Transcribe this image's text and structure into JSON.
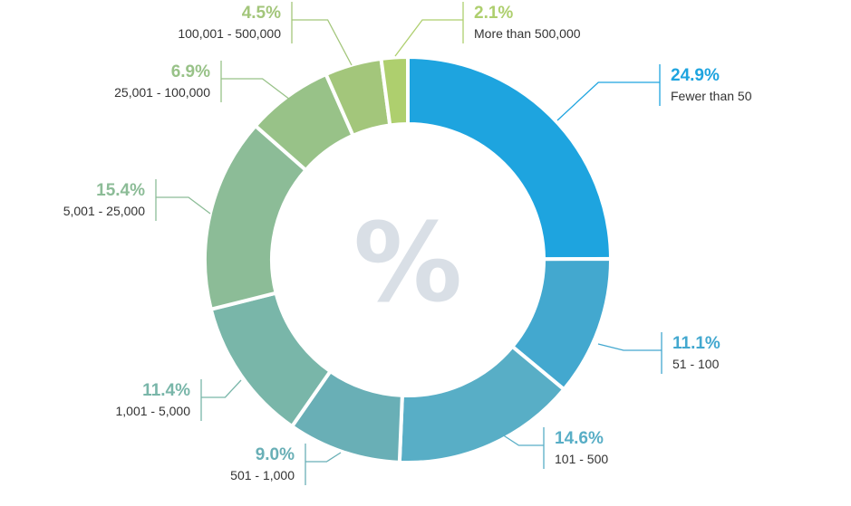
{
  "chart_data": {
    "type": "pie",
    "center_symbol": "%",
    "slices": [
      {
        "label": "Fewer than 50",
        "value": 24.9,
        "value_label": "24.9%",
        "color": "#1ea4df"
      },
      {
        "label": "51 - 100",
        "value": 11.1,
        "value_label": "11.1%",
        "color": "#43a8cf"
      },
      {
        "label": "101 - 500",
        "value": 14.6,
        "value_label": "14.6%",
        "color": "#58aec6"
      },
      {
        "label": "501 - 1,000",
        "value": 9.0,
        "value_label": "9.0%",
        "color": "#69afb6"
      },
      {
        "label": "1,001 - 5,000",
        "value": 11.4,
        "value_label": "11.4%",
        "color": "#79b6a9"
      },
      {
        "label": "5,001 - 25,000",
        "value": 15.4,
        "value_label": "15.4%",
        "color": "#8cbc97"
      },
      {
        "label": "25,001 - 100,000",
        "value": 6.9,
        "value_label": "6.9%",
        "color": "#98c288"
      },
      {
        "label": "100,001 - 500,000",
        "value": 4.5,
        "value_label": "4.5%",
        "color": "#a3c67b"
      },
      {
        "label": "More than 500,000",
        "value": 2.1,
        "value_label": "2.1%",
        "color": "#aecf6e"
      }
    ]
  }
}
